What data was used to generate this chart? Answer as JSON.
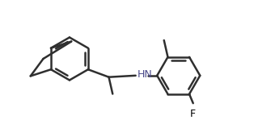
{
  "bg_color": "#ffffff",
  "bond_color": "#2f2f2f",
  "hn_color": "#4a4a8a",
  "f_color": "#000000",
  "line_width": 1.8,
  "figsize": [
    3.14,
    1.49
  ],
  "dpi": 100
}
